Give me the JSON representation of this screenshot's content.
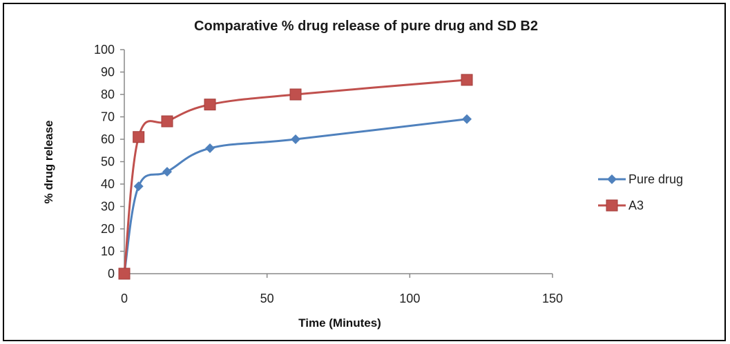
{
  "chart_data": {
    "type": "line",
    "title": "Comparative  % drug release of pure drug and SD B2",
    "xlabel": "Time (Minutes)",
    "ylabel": "% drug release",
    "xlim": [
      0,
      150
    ],
    "ylim": [
      0,
      100
    ],
    "x_ticks": [
      "0",
      "50",
      "100",
      "150"
    ],
    "y_ticks": [
      "0",
      "10",
      "20",
      "30",
      "40",
      "50",
      "60",
      "70",
      "80",
      "90",
      "100"
    ],
    "grid": false,
    "legend_position": "right",
    "series": [
      {
        "name": "Pure drug",
        "color": "#4f81bd",
        "marker": "diamond",
        "x": [
          0,
          5,
          15,
          30,
          60,
          120
        ],
        "y": [
          0,
          39,
          45.5,
          56,
          60,
          69
        ]
      },
      {
        "name": "A3",
        "color": "#c0504d",
        "marker": "square",
        "x": [
          0,
          5,
          15,
          30,
          60,
          120
        ],
        "y": [
          0,
          61,
          68,
          75.5,
          80,
          86.5
        ]
      }
    ]
  }
}
